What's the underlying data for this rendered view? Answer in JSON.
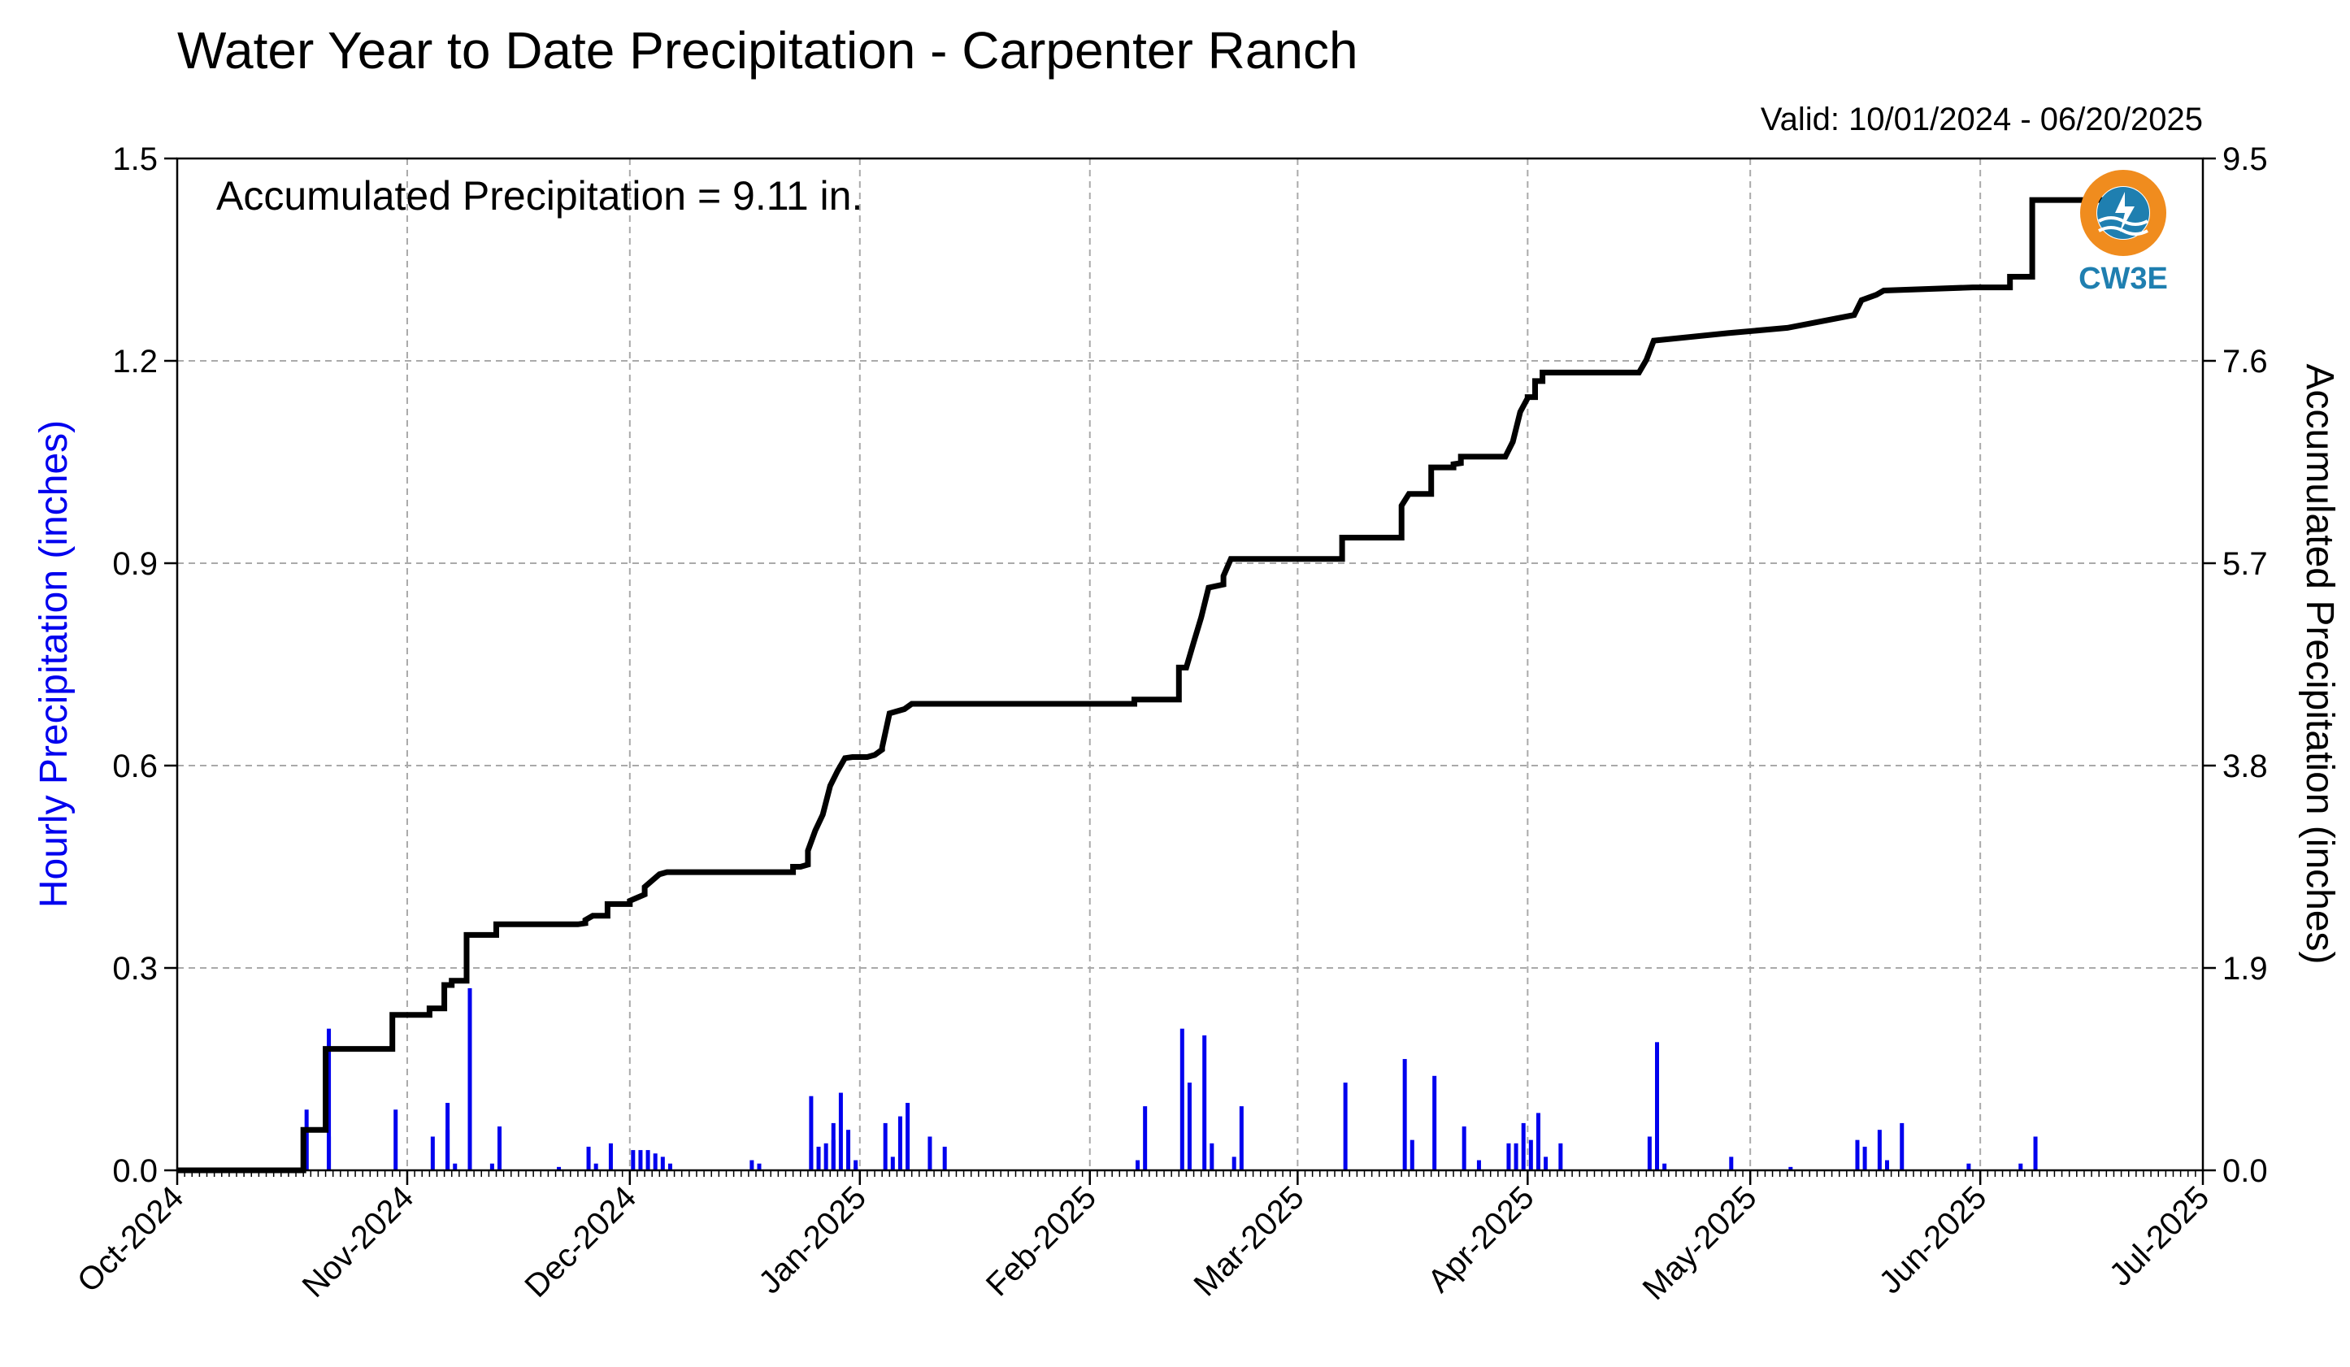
{
  "chart_data": {
    "type": "bar",
    "title": "Water Year to Date Precipitation - Carpenter Ranch",
    "subtitle": "Valid: 10/01/2024 - 06/20/2025",
    "annotation": "Accumulated Precipitation = 9.11 in.",
    "xlabel": "",
    "ylabel": "Hourly Precipitation (inches)",
    "y2label": "Accumulated Precipitation (inches)",
    "xlim": [
      "2024-10-01",
      "2025-07-01"
    ],
    "ylim": [
      0,
      1.5
    ],
    "y2lim": [
      0,
      9.5
    ],
    "x_ticks": [
      "2024-10-01",
      "2024-11-01",
      "2024-12-01",
      "2025-01-01",
      "2025-02-01",
      "2025-03-01",
      "2025-04-01",
      "2025-05-01",
      "2025-06-01",
      "2025-07-01"
    ],
    "x_tick_labels": [
      "Oct-2024",
      "Nov-2024",
      "Dec-2024",
      "Jan-2025",
      "Feb-2025",
      "Mar-2025",
      "Apr-2025",
      "May-2025",
      "Jun-2025",
      "Jul-2025"
    ],
    "y_ticks": [
      0.0,
      0.3,
      0.6,
      0.9,
      1.2,
      1.5
    ],
    "y_tick_labels": [
      "0.0",
      "0.3",
      "0.6",
      "0.9",
      "1.2",
      "1.5"
    ],
    "y2_ticks": [
      0.0,
      1.9,
      3.8,
      5.7,
      7.6,
      9.5
    ],
    "y2_tick_labels": [
      "0.0",
      "1.9",
      "3.8",
      "5.7",
      "7.6",
      "9.5"
    ],
    "grid": true,
    "colors": {
      "hourly": "#0000ee",
      "accumulated": "#000000",
      "grid": "#aaaaaa",
      "logo_orange": "#f08c1e",
      "logo_blue": "#1f7fb0"
    },
    "logo": {
      "text": "CW3E",
      "icon": "cw3e-logo-icon"
    },
    "series": [
      {
        "name": "Hourly Precipitation",
        "type": "bar",
        "axis": "left",
        "x": [
          "2024-10-18",
          "2024-10-18",
          "2024-10-21",
          "2024-10-21",
          "2024-10-30",
          "2024-11-04",
          "2024-11-06",
          "2024-11-06",
          "2024-11-07",
          "2024-11-09",
          "2024-11-12",
          "2024-11-13",
          "2024-11-21",
          "2024-11-25",
          "2024-11-26",
          "2024-11-28",
          "2024-12-01",
          "2024-12-02",
          "2024-12-03",
          "2024-12-04",
          "2024-12-05",
          "2024-12-06",
          "2024-12-17",
          "2024-12-18",
          "2024-12-25",
          "2024-12-25",
          "2024-12-26",
          "2024-12-27",
          "2024-12-28",
          "2024-12-28",
          "2024-12-29",
          "2024-12-30",
          "2024-12-31",
          "2024-12-31",
          "2025-01-04",
          "2025-01-05",
          "2025-01-06",
          "2025-01-07",
          "2025-01-10",
          "2025-01-12",
          "2025-02-07",
          "2025-02-08",
          "2025-02-13",
          "2025-02-14",
          "2025-02-16",
          "2025-02-17",
          "2025-02-20",
          "2025-02-21",
          "2025-03-07",
          "2025-03-15",
          "2025-03-16",
          "2025-03-19",
          "2025-03-23",
          "2025-03-25",
          "2025-03-29",
          "2025-03-30",
          "2025-03-31",
          "2025-04-01",
          "2025-04-02",
          "2025-04-03",
          "2025-04-05",
          "2025-04-17",
          "2025-04-18",
          "2025-04-19",
          "2025-04-28",
          "2025-05-06",
          "2025-05-15",
          "2025-05-16",
          "2025-05-18",
          "2025-05-19",
          "2025-05-21",
          "2025-05-30",
          "2025-06-06",
          "2025-06-08"
        ],
        "values": [
          0.09,
          0.06,
          0.21,
          0.05,
          0.09,
          0.05,
          0.1,
          0.06,
          0.01,
          0.27,
          0.01,
          0.065,
          0.005,
          0.035,
          0.01,
          0.04,
          0.03,
          0.03,
          0.03,
          0.025,
          0.02,
          0.01,
          0.015,
          0.01,
          0.03,
          0.11,
          0.035,
          0.04,
          0.07,
          0.045,
          0.115,
          0.06,
          0.015,
          0.005,
          0.07,
          0.02,
          0.08,
          0.1,
          0.05,
          0.035,
          0.015,
          0.095,
          0.21,
          0.13,
          0.2,
          0.04,
          0.02,
          0.095,
          0.13,
          0.165,
          0.045,
          0.14,
          0.065,
          0.015,
          0.04,
          0.04,
          0.07,
          0.045,
          0.085,
          0.02,
          0.04,
          0.05,
          0.19,
          0.01,
          0.02,
          0.005,
          0.045,
          0.035,
          0.06,
          0.015,
          0.07,
          0.01,
          0.01,
          0.05
        ]
      },
      {
        "name": "Accumulated Precipitation",
        "type": "line",
        "step": true,
        "axis": "right",
        "x": [
          "2024-10-01",
          "2024-10-18",
          "2024-10-18",
          "2024-10-21",
          "2024-10-21",
          "2024-10-30",
          "2024-10-30",
          "2024-11-04",
          "2024-11-04",
          "2024-11-06",
          "2024-11-06",
          "2024-11-07",
          "2024-11-07",
          "2024-11-09",
          "2024-11-09",
          "2024-11-13",
          "2024-11-13",
          "2024-11-24",
          "2024-11-25",
          "2024-11-25",
          "2024-11-26",
          "2024-11-28",
          "2024-11-28",
          "2024-12-01",
          "2024-12-01",
          "2024-12-02",
          "2024-12-03",
          "2024-12-03",
          "2024-12-04",
          "2024-12-05",
          "2024-12-06",
          "2024-12-16",
          "2024-12-17",
          "2024-12-23",
          "2024-12-23",
          "2024-12-24",
          "2024-12-25",
          "2024-12-25",
          "2024-12-26",
          "2024-12-27",
          "2024-12-28",
          "2024-12-29",
          "2024-12-30",
          "2024-12-31",
          "2025-01-02",
          "2025-01-03",
          "2025-01-04",
          "2025-01-04",
          "2025-01-05",
          "2025-01-07",
          "2025-01-08",
          "2025-01-12",
          "2025-02-06",
          "2025-02-07",
          "2025-02-07",
          "2025-02-13",
          "2025-02-13",
          "2025-02-14",
          "2025-02-15",
          "2025-02-16",
          "2025-02-17",
          "2025-02-19",
          "2025-02-19",
          "2025-02-20",
          "2025-02-21",
          "2025-03-07",
          "2025-03-07",
          "2025-03-15",
          "2025-03-15",
          "2025-03-16",
          "2025-03-19",
          "2025-03-19",
          "2025-03-22",
          "2025-03-22",
          "2025-03-23",
          "2025-03-23",
          "2025-03-29",
          "2025-03-30",
          "2025-03-31",
          "2025-04-01",
          "2025-04-01",
          "2025-04-02",
          "2025-04-02",
          "2025-04-03",
          "2025-04-03",
          "2025-04-16",
          "2025-04-17",
          "2025-04-17",
          "2025-04-18",
          "2025-04-18",
          "2025-04-28",
          "2025-04-28",
          "2025-05-06",
          "2025-05-06",
          "2025-05-15",
          "2025-05-15",
          "2025-05-16",
          "2025-05-16",
          "2025-05-18",
          "2025-05-18",
          "2025-05-19",
          "2025-05-19",
          "2025-05-31",
          "2025-06-05",
          "2025-06-05",
          "2025-06-08",
          "2025-06-08",
          "2025-06-20"
        ],
        "values": [
          0.0,
          0.0,
          0.38,
          0.38,
          1.14,
          1.14,
          1.46,
          1.46,
          1.52,
          1.52,
          1.74,
          1.74,
          1.78,
          1.78,
          2.21,
          2.21,
          2.31,
          2.31,
          2.32,
          2.35,
          2.39,
          2.39,
          2.5,
          2.5,
          2.53,
          2.56,
          2.59,
          2.66,
          2.72,
          2.78,
          2.8,
          2.8,
          2.8,
          2.8,
          2.85,
          2.85,
          2.87,
          3.0,
          3.19,
          3.34,
          3.61,
          3.75,
          3.87,
          3.88,
          3.88,
          3.9,
          3.95,
          3.97,
          4.29,
          4.33,
          4.38,
          4.38,
          4.38,
          4.38,
          4.42,
          4.42,
          4.72,
          4.72,
          4.96,
          5.19,
          5.47,
          5.5,
          5.58,
          5.74,
          5.74,
          5.74,
          5.94,
          5.94,
          6.24,
          6.35,
          6.35,
          6.6,
          6.6,
          6.63,
          6.64,
          6.7,
          6.7,
          6.84,
          7.12,
          7.25,
          7.26,
          7.26,
          7.41,
          7.41,
          7.49,
          7.49,
          7.61,
          7.61,
          7.79,
          7.79,
          7.86,
          7.86,
          7.91,
          7.91,
          8.03,
          8.03,
          8.17,
          8.17,
          8.22,
          8.22,
          8.26,
          8.26,
          8.29,
          8.29,
          8.39,
          8.39,
          9.11,
          9.11
        ]
      }
    ]
  }
}
